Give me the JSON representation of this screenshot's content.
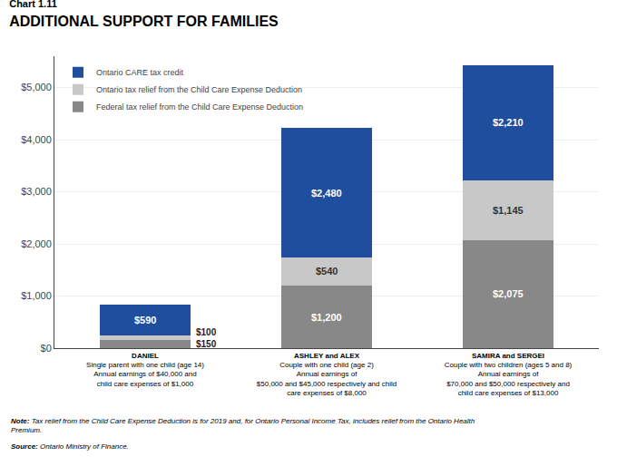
{
  "chart_data": {
    "type": "bar",
    "title": "ADDITIONAL SUPPORT FOR FAMILIES",
    "subtitle": "Chart 1.11",
    "categories": [
      "DANIEL",
      "ASHLEY and ALEX",
      "SAMIRA and SERGEI"
    ],
    "series": [
      {
        "name": "Federal tax relief from the Child Care Expense Deduction",
        "color": "#888888",
        "values": [
          150,
          1200,
          2075
        ],
        "value_labels": [
          "$150",
          "$1,200",
          "$2,075"
        ]
      },
      {
        "name": "Ontario tax relief from the Child Care Expense Deduction",
        "color": "#c8c8c8",
        "values": [
          100,
          540,
          1145
        ],
        "value_labels": [
          "$100",
          "$540",
          "$1,145"
        ]
      },
      {
        "name": "Ontario CARE tax credit",
        "color": "#1f4e9e",
        "values": [
          590,
          2480,
          2210
        ],
        "value_labels": [
          "$590",
          "$2,480",
          "$2,210"
        ]
      }
    ],
    "stacked": true,
    "data_labels": true,
    "ylim": [
      0,
      5600
    ],
    "yticks": [
      {
        "value": 0,
        "label": "$0"
      },
      {
        "value": 1000,
        "label": "$1,000"
      },
      {
        "value": 2000,
        "label": "$2,000"
      },
      {
        "value": 3000,
        "label": "$3,000"
      },
      {
        "value": 4000,
        "label": "$4,000"
      },
      {
        "value": 5000,
        "label": "$5,000"
      }
    ],
    "grid": true,
    "legend": "upper left",
    "annotations": [
      {
        "category": "DANIEL",
        "text": "Single parent with one child (age 14)\nAnnual earnings of $40,000 and\nchild care expenses of $1,000"
      },
      {
        "category": "ASHLEY and ALEX",
        "text": "Couple with one child (age 2)\nAnnual earnings of\n$50,000 and $45,000 respectively and child\ncare expenses of $8,000"
      },
      {
        "category": "SAMIRA and SERGEI",
        "text": "Couple with two children (ages 5 and 8)\nAnnual earnings of\n$70,000 and $50,000 respectively and\nchild care expenses of $13,000"
      },
      {
        "label": "Note:",
        "text": "Tax relief from the Child Care Expense Deduction is for 2019 and, for Ontario Personal Income Tax, includes relief from the Ontario Health\nPremium."
      },
      {
        "label": "Source:",
        "text": "Ontario Ministry of Finance."
      }
    ]
  }
}
